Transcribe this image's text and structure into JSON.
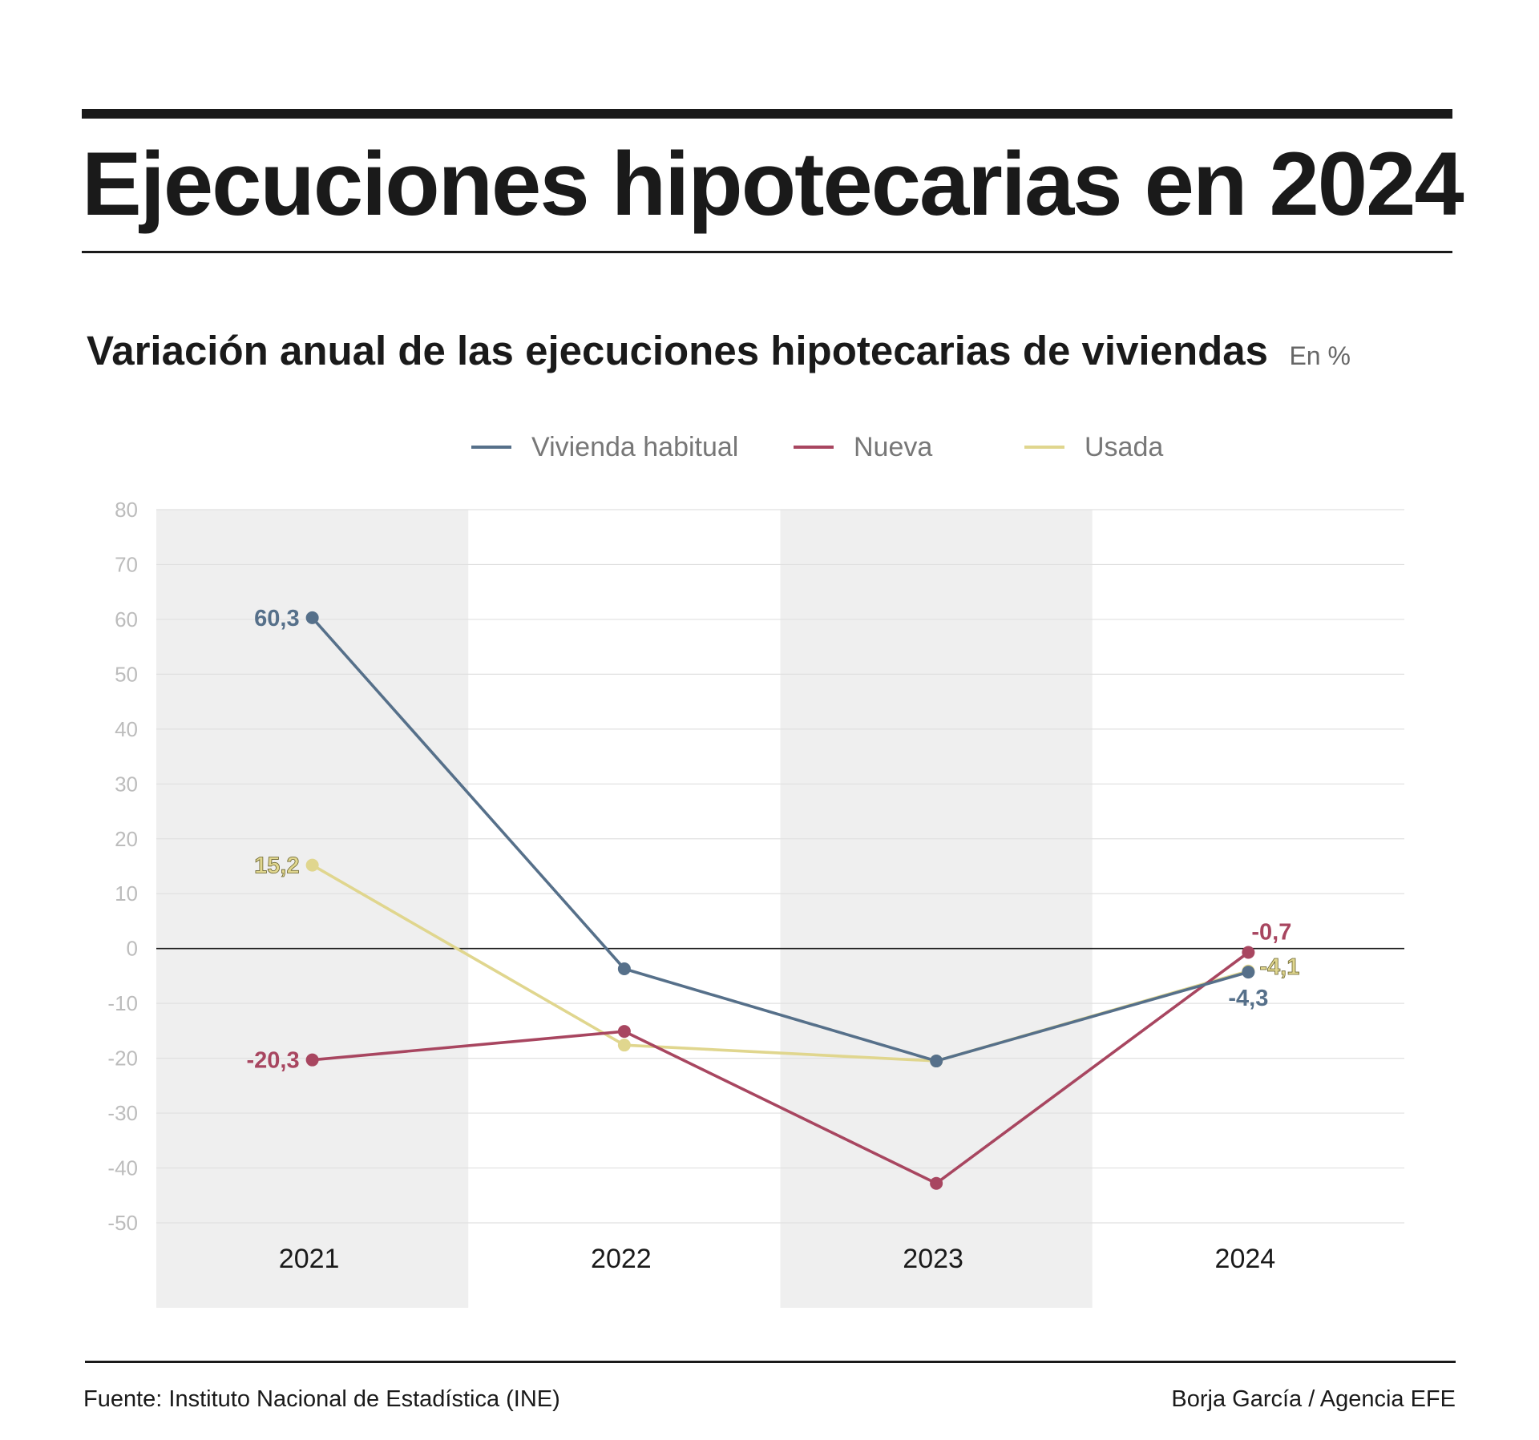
{
  "header": {
    "title": "Ejecuciones hipotecarias en 2024"
  },
  "chart_data": {
    "type": "line",
    "title": "Variación anual de las ejecuciones hipotecarias de viviendas",
    "unit": "En %",
    "categories": [
      "2021",
      "2022",
      "2023",
      "2024"
    ],
    "ylim": [
      -50,
      80
    ],
    "yticks": [
      80,
      70,
      60,
      50,
      40,
      30,
      20,
      10,
      0,
      -10,
      -20,
      -30,
      -40,
      -50
    ],
    "grid": true,
    "legend_position": "top-center",
    "series": [
      {
        "name": "Vivienda habitual",
        "color": "#56708a",
        "values": [
          60.3,
          -3.7,
          -20.5,
          -4.3
        ],
        "labels": [
          "60,3",
          "",
          "",
          "-4,3"
        ]
      },
      {
        "name": "Nueva",
        "color": "#a84660",
        "values": [
          -20.3,
          -15.1,
          -42.8,
          -0.7
        ],
        "labels": [
          "-20,3",
          "",
          "",
          "-0,7"
        ]
      },
      {
        "name": "Usada",
        "color": "#e0d68e",
        "values": [
          15.2,
          -17.6,
          -20.5,
          -4.1
        ],
        "labels": [
          "15,2",
          "",
          "",
          "-4,1"
        ]
      }
    ],
    "band_color": "#efefef",
    "grid_color": "#e0e0e0",
    "tick_color": "#bcbcbc"
  },
  "footer": {
    "source": "Fuente: Instituto Nacional de Estadística (INE)",
    "credit": "Borja García / Agencia EFE"
  }
}
